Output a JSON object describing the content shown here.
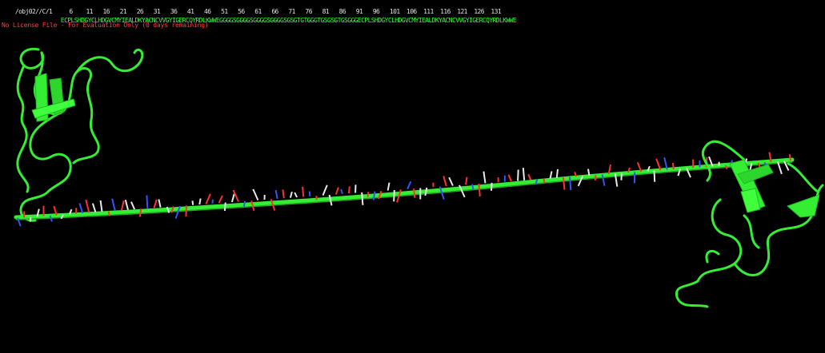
{
  "viewer": {
    "object_label": "/obj02//C/1",
    "residue_numbers": "6    11   16   21   26   31   36   41   46   51   56   61   66   71   76   81   86   91   96   101  106  111  116  121  126  131",
    "sequence": "ECPLSHDGYCLHDGVCMYIEALDKYACNCVVGYIGERCQYRDLKWWEGGGGSGGGGSGGGGSGGGGSGSGTGTGGGTGSGSGTGSGGGECPLSHDGYCLHDGVCMYIEALDKYACNCVVGYIGERCQYRDLKWWE",
    "license_notice": "No License File - For Evaluation Only (0 days remaining)"
  },
  "colors": {
    "background": "#000000",
    "carbon": "#33ee33",
    "nitrogen": "#3355ff",
    "oxygen": "#ff3030",
    "hydrogen": "#e8e8e8",
    "license_text": "#ff4040"
  },
  "structure": {
    "representation": "cartoon-with-sticks",
    "domains": [
      "left-domain-cartoon",
      "linker-sticks",
      "right-domain-cartoon"
    ]
  }
}
